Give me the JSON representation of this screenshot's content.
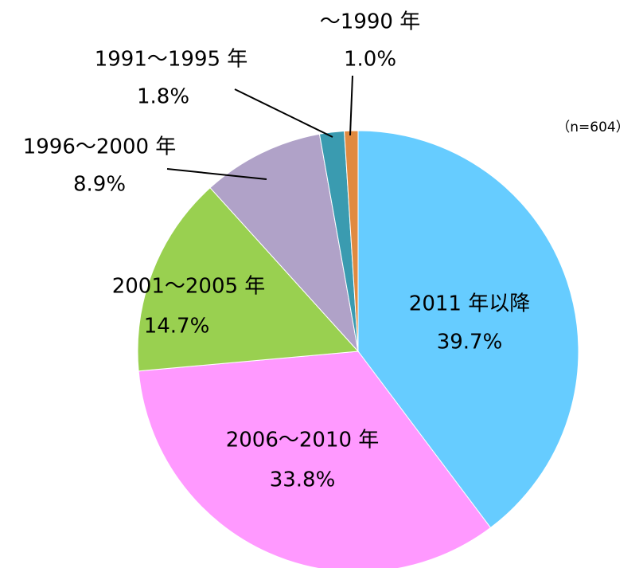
{
  "chart_data": {
    "type": "pie",
    "annotation": "（n=604）",
    "categories": [
      "2011 年以降",
      "2006～2010 年",
      "2001～2005 年",
      "1996～2000 年",
      "1991～1995 年",
      "～1990 年"
    ],
    "values": [
      39.7,
      33.8,
      14.7,
      8.9,
      1.8,
      1.0
    ],
    "value_labels": [
      "39.7%",
      "33.8%",
      "14.7%",
      "8.9%",
      "1.8%",
      "1.0%"
    ],
    "colors": [
      "#66ccff",
      "#ff99ff",
      "#99d050",
      "#b0a2c8",
      "#3a9bb0",
      "#e08a40"
    ]
  }
}
